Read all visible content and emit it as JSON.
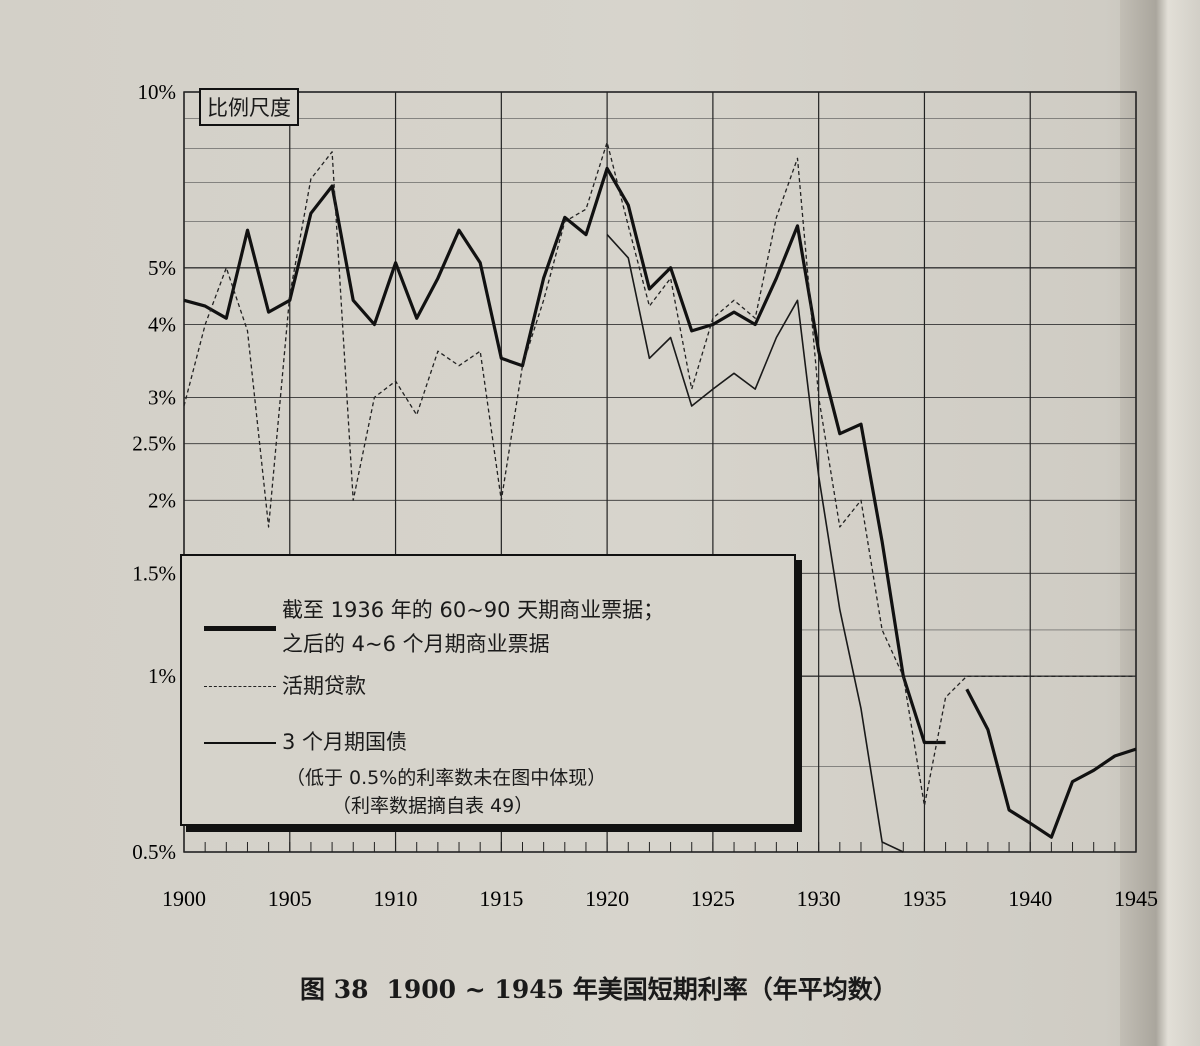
{
  "chart_data": {
    "type": "line",
    "title": "1900 ~ 1945 年美国短期利率（年平均数）",
    "figure_label": "图 38",
    "scale_label": "比例尺度",
    "y_scale": "log",
    "ylim": [
      0.5,
      10
    ],
    "xlim": [
      1900,
      1945
    ],
    "y_ticks": [
      {
        "value": 10,
        "label": "10%"
      },
      {
        "value": 5,
        "label": "5%"
      },
      {
        "value": 4,
        "label": "4%"
      },
      {
        "value": 3,
        "label": "3%"
      },
      {
        "value": 2.5,
        "label": "2.5%"
      },
      {
        "value": 2,
        "label": "2%"
      },
      {
        "value": 1.5,
        "label": "1.5%"
      },
      {
        "value": 1,
        "label": "1%"
      },
      {
        "value": 0.5,
        "label": "0.5%"
      }
    ],
    "x_ticks": [
      "1900",
      "1905",
      "1910",
      "1915",
      "1920",
      "1925",
      "1930",
      "1935",
      "1940",
      "1945"
    ],
    "series": [
      {
        "name": "截至 1936 年的 60~90 天期商业票据；之后的 4~6 个月期商业票据",
        "style": "thick",
        "color": "#111111",
        "segments": [
          [
            [
              1900,
              4.4
            ],
            [
              1901,
              4.3
            ],
            [
              1902,
              4.1
            ],
            [
              1903,
              5.8
            ],
            [
              1904,
              4.2
            ],
            [
              1905,
              4.4
            ],
            [
              1906,
              6.2
            ],
            [
              1907,
              6.9
            ],
            [
              1908,
              4.4
            ],
            [
              1909,
              4.0
            ],
            [
              1910,
              5.1
            ],
            [
              1911,
              4.1
            ],
            [
              1912,
              4.8
            ],
            [
              1913,
              5.8
            ],
            [
              1914,
              5.1
            ],
            [
              1915,
              3.5
            ],
            [
              1916,
              3.4
            ],
            [
              1917,
              4.8
            ],
            [
              1918,
              6.1
            ],
            [
              1919,
              5.7
            ],
            [
              1920,
              7.4
            ],
            [
              1921,
              6.4
            ],
            [
              1922,
              4.6
            ],
            [
              1923,
              5.0
            ],
            [
              1924,
              3.9
            ],
            [
              1925,
              4.0
            ],
            [
              1926,
              4.2
            ],
            [
              1927,
              4.0
            ],
            [
              1928,
              4.8
            ],
            [
              1929,
              5.9
            ],
            [
              1930,
              3.6
            ],
            [
              1931,
              2.6
            ],
            [
              1932,
              2.7
            ],
            [
              1933,
              1.7
            ],
            [
              1934,
              1.0
            ],
            [
              1935,
              0.77
            ],
            [
              1936,
              0.77
            ]
          ],
          [
            [
              1937,
              0.95
            ],
            [
              1938,
              0.81
            ],
            [
              1939,
              0.59
            ],
            [
              1940,
              0.56
            ],
            [
              1941,
              0.53
            ],
            [
              1942,
              0.66
            ],
            [
              1943,
              0.69
            ],
            [
              1944,
              0.73
            ],
            [
              1945,
              0.75
            ]
          ]
        ]
      },
      {
        "name": "活期贷款",
        "style": "dashed",
        "color": "#222222",
        "segments": [
          [
            [
              1900,
              2.9
            ],
            [
              1901,
              4.0
            ],
            [
              1902,
              5.0
            ],
            [
              1903,
              3.9
            ],
            [
              1904,
              1.8
            ],
            [
              1905,
              4.5
            ],
            [
              1906,
              7.1
            ],
            [
              1907,
              7.9
            ],
            [
              1908,
              2.0
            ],
            [
              1909,
              3.0
            ],
            [
              1910,
              3.2
            ],
            [
              1911,
              2.8
            ],
            [
              1912,
              3.6
            ],
            [
              1913,
              3.4
            ],
            [
              1914,
              3.6
            ],
            [
              1915,
              2.0
            ],
            [
              1916,
              3.4
            ],
            [
              1917,
              4.4
            ],
            [
              1918,
              6.0
            ],
            [
              1919,
              6.3
            ],
            [
              1920,
              8.2
            ],
            [
              1921,
              5.9
            ],
            [
              1922,
              4.3
            ],
            [
              1923,
              4.8
            ],
            [
              1924,
              3.1
            ],
            [
              1925,
              4.1
            ],
            [
              1926,
              4.4
            ],
            [
              1927,
              4.1
            ],
            [
              1928,
              6.1
            ],
            [
              1929,
              7.7
            ],
            [
              1930,
              3.0
            ],
            [
              1931,
              1.8
            ],
            [
              1932,
              2.0
            ],
            [
              1933,
              1.2
            ],
            [
              1934,
              1.0
            ],
            [
              1935,
              0.6
            ],
            [
              1936,
              0.92
            ],
            [
              1937,
              1.0
            ],
            [
              1938,
              1.0
            ],
            [
              1939,
              1.0
            ],
            [
              1940,
              1.0
            ],
            [
              1941,
              1.0
            ],
            [
              1942,
              1.0
            ],
            [
              1943,
              1.0
            ],
            [
              1944,
              1.0
            ],
            [
              1945,
              1.0
            ]
          ]
        ]
      },
      {
        "name": "3 个月期国债",
        "style": "thin",
        "color": "#1a1a1a",
        "segments": [
          [
            [
              1920,
              5.7
            ],
            [
              1921,
              5.2
            ],
            [
              1922,
              3.5
            ],
            [
              1923,
              3.8
            ],
            [
              1924,
              2.9
            ],
            [
              1925,
              3.1
            ],
            [
              1926,
              3.3
            ],
            [
              1927,
              3.1
            ],
            [
              1928,
              3.8
            ],
            [
              1929,
              4.4
            ],
            [
              1930,
              2.2
            ],
            [
              1931,
              1.3
            ],
            [
              1932,
              0.88
            ],
            [
              1933,
              0.52
            ],
            [
              1934,
              0.5
            ]
          ]
        ]
      }
    ]
  },
  "legend": {
    "entry1_line1": "截至 1936 年的 60~90 天期商业票据；",
    "entry1_line2": "之后的 4~6 个月期商业票据",
    "entry2": "活期贷款",
    "entry3": "3 个月期国债",
    "note1": "（低于 0.5%的利率数未在图中体现）",
    "note2": "（利率数据摘自表 49）"
  },
  "caption": {
    "figure": "图 38",
    "text": "1900 ~ 1945 年美国短期利率（年平均数）"
  }
}
